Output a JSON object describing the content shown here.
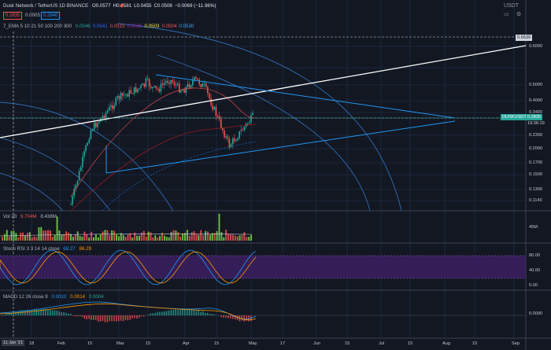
{
  "header": {
    "symbol_line": "Dusk Network / TetherUS  1D  BINANCE",
    "ohlc": [
      {
        "k": "O",
        "v": "0.0577",
        "c": "#e2e4ea"
      },
      {
        "k": "H",
        "v": "0.0581",
        "c": "#e2e4ea"
      },
      {
        "k": "L",
        "v": "0.0455",
        "c": "#e2e4ea"
      },
      {
        "k": "C",
        "v": "0.0508",
        "c": "#e2e4ea"
      },
      {
        "k": "",
        "v": "−0.0069 (−11.96%)",
        "c": "#e2e4ea"
      }
    ],
    "bid": "0.2835",
    "spread": "0.0005",
    "ask": "0.2840",
    "ema_label": "7_EMA 5 10 21 50 100 200 300",
    "ema_values": [
      {
        "v": "0.0546",
        "c": "#26a69a"
      },
      {
        "v": "0.0541",
        "c": "#2962ff"
      },
      {
        "v": "0.0515",
        "c": "#ef5350"
      },
      {
        "v": "0.0505",
        "c": "#9c27b0"
      },
      {
        "v": "0.0503",
        "c": "#ffeb3b"
      },
      {
        "v": "0.0504",
        "c": "#ff5252"
      },
      {
        "v": "0.0530",
        "c": "#42a5f5"
      }
    ]
  },
  "quote_currency": "USDT",
  "price_axis": [
    "0.6000",
    "0.5000",
    "0.4000",
    "0.3400",
    "0.2835",
    "0.2300",
    "0.2000",
    "0.1700",
    "0.1500",
    "0.1300",
    "0.1140"
  ],
  "price_tags": {
    "top": "0.6639",
    "last": "0.2835",
    "countdown": "19:36:19",
    "symbol": "DUSKUSDT"
  },
  "volume": {
    "label": "Vol 20",
    "v1": "9.704M",
    "v2": "8.438M",
    "axis": [
      "45M"
    ]
  },
  "stoch": {
    "label": "Stoch RSI 3 3 14 14 close",
    "v1": "68.27",
    "v2": "86.29",
    "axis": [
      "80.00",
      "40.00",
      "0.00"
    ]
  },
  "macd": {
    "label": "MACD 12 26 close 9",
    "v1": "0.0010",
    "v2": "0.0014",
    "v3": "0.0004",
    "axis": [
      "0.0000"
    ]
  },
  "time_axis": {
    "cursor": "11 Jan '21",
    "ticks": [
      "18",
      "Feb",
      "15",
      "Mar",
      "15",
      "Apr",
      "15",
      "May",
      "17",
      "Jun",
      "15",
      "Jul",
      "15",
      "Aug",
      "15",
      "Sep"
    ]
  },
  "colors": {
    "bg": "#131722",
    "up": "#26a69a",
    "down": "#ef5350",
    "grid": "#2a4a7a",
    "trend": "#2196f3",
    "white_line": "#ffffff",
    "stoch_band": "#3a1f5e"
  }
}
